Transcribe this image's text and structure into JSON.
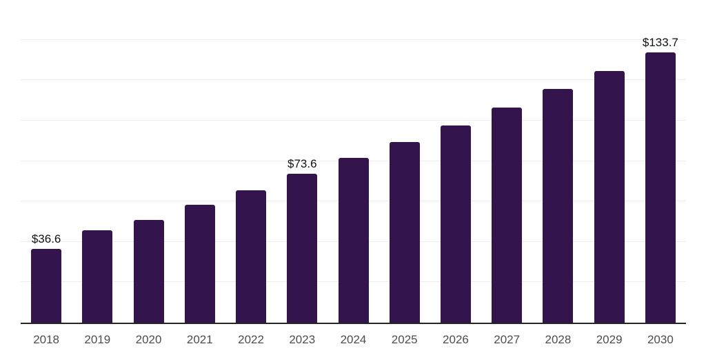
{
  "chart_data": {
    "type": "bar",
    "title": "",
    "xlabel": "",
    "ylabel": "",
    "categories": [
      "2018",
      "2019",
      "2020",
      "2021",
      "2022",
      "2023",
      "2024",
      "2025",
      "2026",
      "2027",
      "2028",
      "2029",
      "2030"
    ],
    "values": [
      36.6,
      45.8,
      50.9,
      58.3,
      65.5,
      73.6,
      81.5,
      89.4,
      97.7,
      106.4,
      115.5,
      124.6,
      133.7
    ],
    "value_labels": [
      "$36.6",
      null,
      null,
      null,
      null,
      "$73.6",
      null,
      null,
      null,
      null,
      null,
      null,
      "$133.7"
    ],
    "ylim": [
      0,
      160
    ],
    "gridline_interval": 20,
    "grid": "horizontal-only",
    "y_axis_tick_labels_visible": false,
    "legend_position": "none",
    "colors": {
      "bar": "#34144d",
      "axis_line": "#262626",
      "gridline": "#ededed",
      "tick_label": "#4d4d4d",
      "data_label": "#111111",
      "background": "#ffffff"
    }
  }
}
